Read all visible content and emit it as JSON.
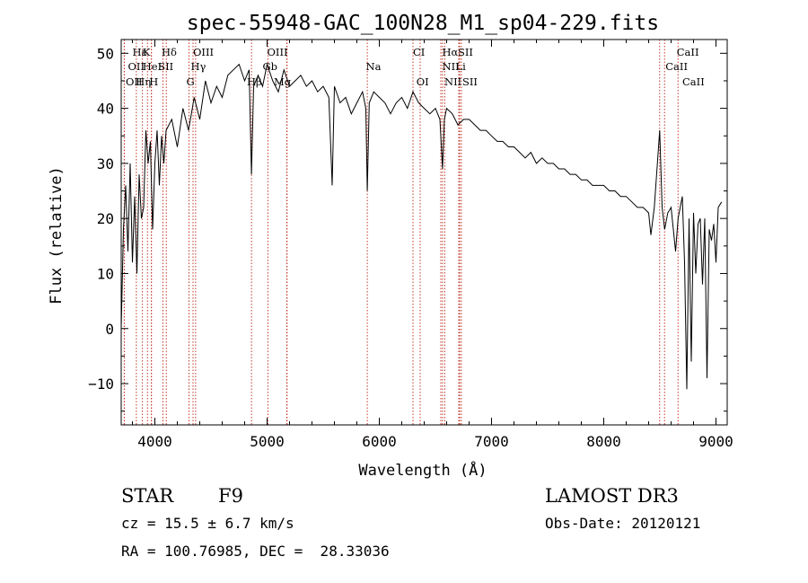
{
  "chart_data": {
    "type": "line",
    "title": "spec-55948-GAC_100N28_M1_sp04-229.fits",
    "xlabel": "Wavelength (Å)",
    "ylabel": "Flux (relative)",
    "xlim": [
      3700,
      9100
    ],
    "ylim": [
      -17.5,
      52.5
    ],
    "xticks": [
      4000,
      5000,
      6000,
      7000,
      8000,
      9000
    ],
    "yticks": [
      -10,
      0,
      10,
      20,
      30,
      40,
      50
    ],
    "grid": false,
    "series": [
      {
        "name": "flux",
        "x": [
          3700,
          3720,
          3740,
          3760,
          3780,
          3800,
          3820,
          3840,
          3860,
          3880,
          3900,
          3920,
          3940,
          3960,
          3980,
          4000,
          4020,
          4040,
          4060,
          4080,
          4100,
          4150,
          4200,
          4250,
          4300,
          4350,
          4400,
          4450,
          4500,
          4550,
          4600,
          4650,
          4700,
          4750,
          4800,
          4840,
          4861,
          4880,
          4920,
          4960,
          5000,
          5050,
          5100,
          5150,
          5200,
          5250,
          5300,
          5350,
          5400,
          5450,
          5500,
          5550,
          5580,
          5600,
          5650,
          5700,
          5750,
          5800,
          5850,
          5880,
          5893,
          5910,
          5950,
          6000,
          6050,
          6100,
          6150,
          6200,
          6250,
          6300,
          6350,
          6400,
          6450,
          6500,
          6540,
          6563,
          6580,
          6600,
          6650,
          6700,
          6750,
          6800,
          6850,
          6900,
          6950,
          7000,
          7050,
          7100,
          7150,
          7200,
          7250,
          7300,
          7350,
          7400,
          7450,
          7500,
          7550,
          7600,
          7650,
          7700,
          7750,
          7800,
          7850,
          7900,
          7950,
          8000,
          8050,
          8100,
          8150,
          8200,
          8250,
          8300,
          8350,
          8400,
          8420,
          8450,
          8498,
          8520,
          8542,
          8570,
          8600,
          8640,
          8662,
          8700,
          8720,
          8740,
          8760,
          8780,
          8800,
          8820,
          8840,
          8860,
          8880,
          8900,
          8920,
          8940,
          8960,
          8980,
          9000,
          9020,
          9050
        ],
        "y": [
          0,
          18,
          26,
          14,
          30,
          12,
          24,
          10,
          28,
          20,
          22,
          36,
          30,
          34,
          18,
          30,
          36,
          26,
          35,
          30,
          36,
          38,
          33,
          40,
          36,
          42,
          38,
          45,
          41,
          44,
          42,
          46,
          47,
          48,
          45,
          47,
          28,
          44,
          46,
          44,
          48,
          45,
          43,
          47,
          44,
          45,
          46,
          44,
          45,
          43,
          44,
          42,
          26,
          44,
          41,
          42,
          39,
          41,
          43,
          40,
          25,
          41,
          43,
          42,
          41,
          39,
          41,
          42,
          40,
          43,
          41,
          40,
          39,
          40,
          38,
          29,
          38,
          40,
          39,
          37,
          38,
          38,
          37,
          36,
          36,
          35,
          34,
          34,
          33,
          33,
          32,
          31,
          32,
          30,
          31,
          30,
          30,
          29,
          29,
          28,
          28,
          27,
          27,
          26,
          26,
          26,
          25,
          25,
          24,
          24,
          23,
          22,
          22,
          21,
          17,
          22,
          36,
          22,
          18,
          21,
          22,
          14,
          20,
          24,
          12,
          -11,
          20,
          -6,
          21,
          10,
          19,
          20,
          8,
          20,
          -9,
          18,
          16,
          19,
          12,
          22,
          23
        ]
      }
    ],
    "lines": [
      {
        "name": "Hε",
        "wavelength": 3970
      },
      {
        "name": "K",
        "wavelength": 3934
      },
      {
        "name": "Hδ",
        "wavelength": 4102
      },
      {
        "name": "OIII",
        "wavelength": 4363
      },
      {
        "name": "OIII",
        "wavelength": 5007
      },
      {
        "name": "Na",
        "wavelength": 5893
      },
      {
        "name": "CI",
        "wavelength": 6300
      },
      {
        "name": "Hα",
        "wavelength": 6563
      },
      {
        "name": "SII",
        "wavelength": 6716
      },
      {
        "name": "CaII",
        "wavelength": 8662
      },
      {
        "name": "OII",
        "wavelength": 3727
      },
      {
        "name": "HeI",
        "wavelength": 3889
      },
      {
        "name": "SII",
        "wavelength": 4072
      },
      {
        "name": "Hγ",
        "wavelength": 4340
      },
      {
        "name": "Gb",
        "wavelength": 5175
      },
      {
        "name": "NII",
        "wavelength": 6583
      },
      {
        "name": "Li",
        "wavelength": 6708
      },
      {
        "name": "CaII",
        "wavelength": 8542
      },
      {
        "name": "OII",
        "wavelength": 3729
      },
      {
        "name": "Hη",
        "wavelength": 3835
      },
      {
        "name": "H",
        "wavelength": 3968
      },
      {
        "name": "G",
        "wavelength": 4304
      },
      {
        "name": "Hβ",
        "wavelength": 4861
      },
      {
        "name": "Mg",
        "wavelength": 5178
      },
      {
        "name": "OI",
        "wavelength": 6364
      },
      {
        "name": "NII",
        "wavelength": 6548
      },
      {
        "name": "SII",
        "wavelength": 6731
      },
      {
        "name": "CaII",
        "wavelength": 8498
      }
    ],
    "line_labels": {
      "row1": [
        {
          "text": "Hε",
          "x": 3800
        },
        {
          "text": "K",
          "x": 3890
        },
        {
          "text": "Hδ",
          "x": 4060
        },
        {
          "text": "OIII",
          "x": 4340
        },
        {
          "text": "OIII",
          "x": 5000
        },
        {
          "text": "CI",
          "x": 6300
        },
        {
          "text": "Hα",
          "x": 6560
        },
        {
          "text": "SII",
          "x": 6700
        },
        {
          "text": "CaII",
          "x": 8650
        }
      ],
      "row2": [
        {
          "text": "OII",
          "x": 3760
        },
        {
          "text": "HeI",
          "x": 3890
        },
        {
          "text": "SII",
          "x": 4030
        },
        {
          "text": "Hγ",
          "x": 4320
        },
        {
          "text": "Gb",
          "x": 4960
        },
        {
          "text": "Na",
          "x": 5880
        },
        {
          "text": "NII",
          "x": 6560
        },
        {
          "text": "Li",
          "x": 6680
        },
        {
          "text": "CaII",
          "x": 8550
        }
      ],
      "row3": [
        {
          "text": "OII",
          "x": 3740
        },
        {
          "text": "Hη",
          "x": 3830
        },
        {
          "text": "H",
          "x": 3950
        },
        {
          "text": "G",
          "x": 4280
        },
        {
          "text": "Hβ",
          "x": 4820
        },
        {
          "text": "Mg",
          "x": 5060
        },
        {
          "text": "OI",
          "x": 6330
        },
        {
          "text": "NII",
          "x": 6580
        },
        {
          "text": "SII",
          "x": 6740
        },
        {
          "text": "CaII",
          "x": 8700
        }
      ]
    }
  },
  "info": {
    "class": "STAR",
    "subclass": "F9",
    "survey": "LAMOST DR3",
    "cz": "cz = 15.5 ± 6.7 km/s",
    "obs_date": "Obs-Date: 20120121",
    "radec": "RA = 100.76985, DEC =  28.33036"
  }
}
